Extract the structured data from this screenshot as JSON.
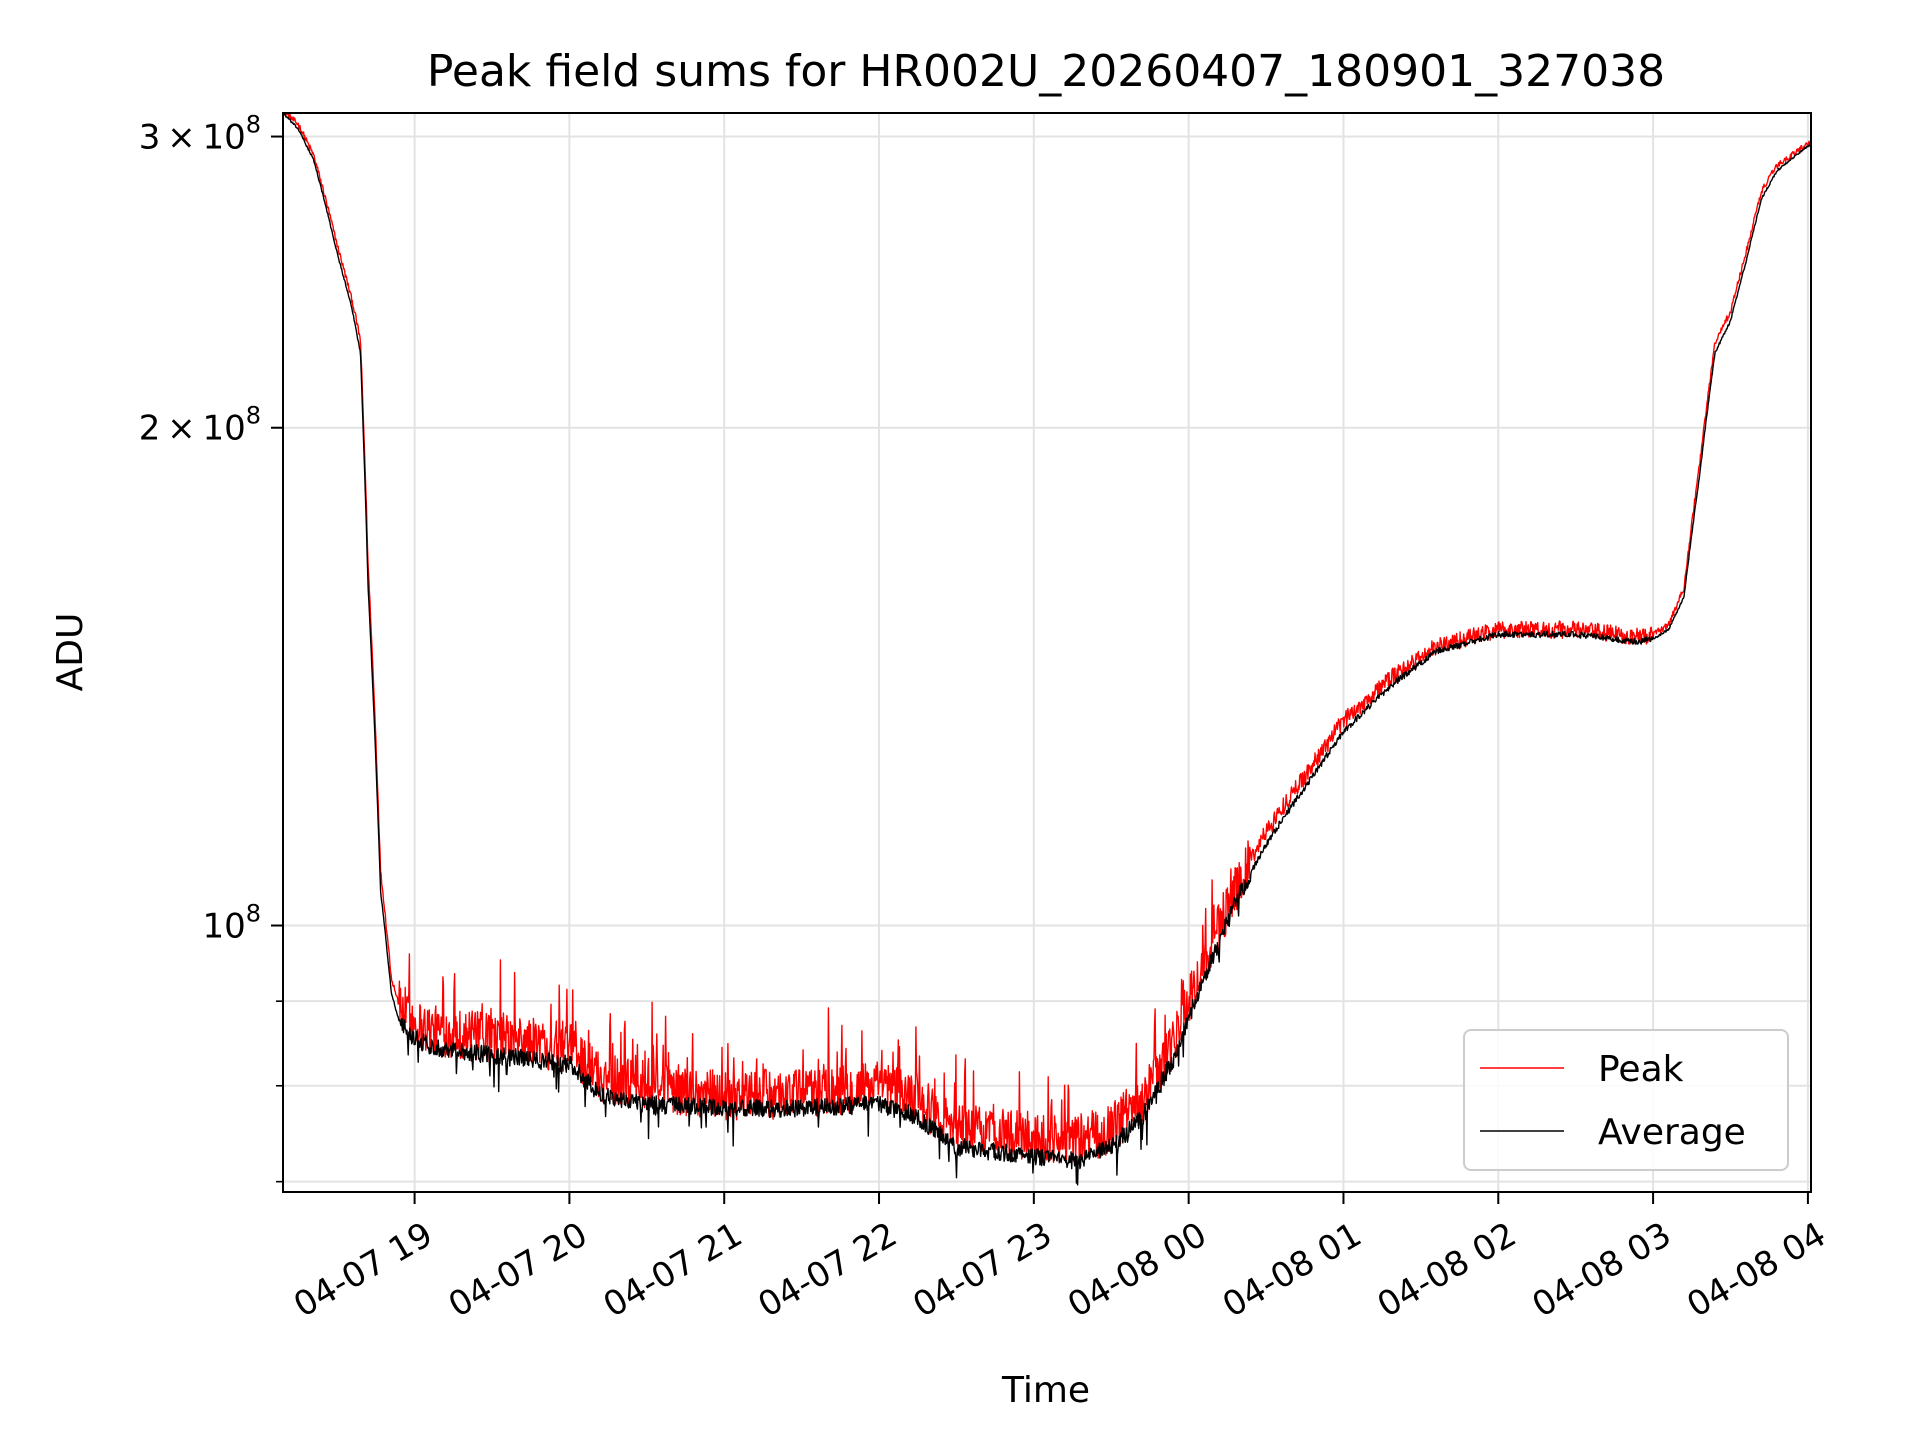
{
  "chart_data": {
    "type": "line",
    "title": "Peak field sums for HR002U_20260407_180901_327038",
    "xlabel": "Time",
    "ylabel": "ADU",
    "y_scale": "log",
    "ylim": [
      69000000,
      310000000
    ],
    "xlim_hours_since_0407_1800": [
      0.15,
      10.02
    ],
    "grid": true,
    "legend_position": "lower-right",
    "x_ticks": [
      {
        "label": "04-07 19",
        "hour": 1
      },
      {
        "label": "04-07 20",
        "hour": 2
      },
      {
        "label": "04-07 21",
        "hour": 3
      },
      {
        "label": "04-07 22",
        "hour": 4
      },
      {
        "label": "04-07 23",
        "hour": 5
      },
      {
        "label": "04-08 00",
        "hour": 6
      },
      {
        "label": "04-08 01",
        "hour": 7
      },
      {
        "label": "04-08 02",
        "hour": 8
      },
      {
        "label": "04-08 03",
        "hour": 9
      },
      {
        "label": "04-08 04",
        "hour": 10
      }
    ],
    "y_major_ticks": [
      {
        "mantissa": "3",
        "exp": "8",
        "value": 300000000
      },
      {
        "mantissa": "2",
        "exp": "8",
        "value": 200000000
      },
      {
        "mantissa": "",
        "exp": "8",
        "value": 100000000
      }
    ],
    "y_minor_ticks": [
      70000000,
      80000000,
      90000000
    ],
    "series": [
      {
        "name": "Peak",
        "color": "#ff0000",
        "x": [
          0.15,
          0.25,
          0.35,
          0.5,
          0.6,
          0.65,
          0.7,
          0.78,
          0.85,
          0.9,
          0.95,
          1.0,
          1.1,
          1.5,
          2.0,
          2.2,
          2.5,
          3.0,
          3.5,
          4.0,
          4.2,
          4.5,
          5.0,
          5.3,
          5.5,
          5.7,
          5.9,
          6.1,
          6.3,
          6.5,
          6.8,
          7.0,
          7.3,
          7.6,
          8.0,
          8.5,
          8.9,
          9.0,
          9.1,
          9.2,
          9.3,
          9.4,
          9.5,
          9.6,
          9.7,
          9.8,
          10.02
        ],
        "y": [
          311000000,
          305000000,
          292000000,
          258000000,
          238000000,
          226000000,
          165000000,
          108000000,
          93000000,
          89500000,
          88500000,
          87500000,
          86500000,
          85500000,
          84500000,
          81000000,
          80000000,
          79000000,
          79200000,
          80000000,
          79000000,
          75500000,
          74500000,
          74000000,
          75500000,
          78500000,
          85000000,
          95000000,
          105000000,
          114000000,
          125000000,
          133000000,
          141000000,
          147500000,
          151000000,
          151000000,
          149500000,
          150000000,
          152000000,
          160000000,
          190000000,
          225000000,
          235000000,
          255000000,
          278000000,
          288000000,
          298000000
        ],
        "spike_amplitude": 0.07
      },
      {
        "name": "Average",
        "color": "#000000",
        "x": [
          0.15,
          0.25,
          0.35,
          0.5,
          0.6,
          0.65,
          0.7,
          0.78,
          0.85,
          0.9,
          0.95,
          1.0,
          1.1,
          1.5,
          2.0,
          2.2,
          2.5,
          3.0,
          3.5,
          4.0,
          4.2,
          4.5,
          5.0,
          5.3,
          5.5,
          5.7,
          5.9,
          6.1,
          6.3,
          6.5,
          6.8,
          7.0,
          7.3,
          7.6,
          8.0,
          8.5,
          8.9,
          9.0,
          9.1,
          9.2,
          9.3,
          9.4,
          9.5,
          9.6,
          9.7,
          9.8,
          10.02
        ],
        "y": [
          310000000,
          303000000,
          290000000,
          255000000,
          235000000,
          222000000,
          160000000,
          105000000,
          91000000,
          87500000,
          86500000,
          85500000,
          84500000,
          83500000,
          82500000,
          79000000,
          78000000,
          77500000,
          77500000,
          78000000,
          77000000,
          73500000,
          72500000,
          72000000,
          73500000,
          76500000,
          83000000,
          93000000,
          103000000,
          112000000,
          123000000,
          131000000,
          139500000,
          146500000,
          150000000,
          150000000,
          148500000,
          149000000,
          151000000,
          158000000,
          187000000,
          222000000,
          232000000,
          252000000,
          275000000,
          286000000,
          297000000
        ],
        "spike_amplitude": 0.025
      }
    ]
  }
}
